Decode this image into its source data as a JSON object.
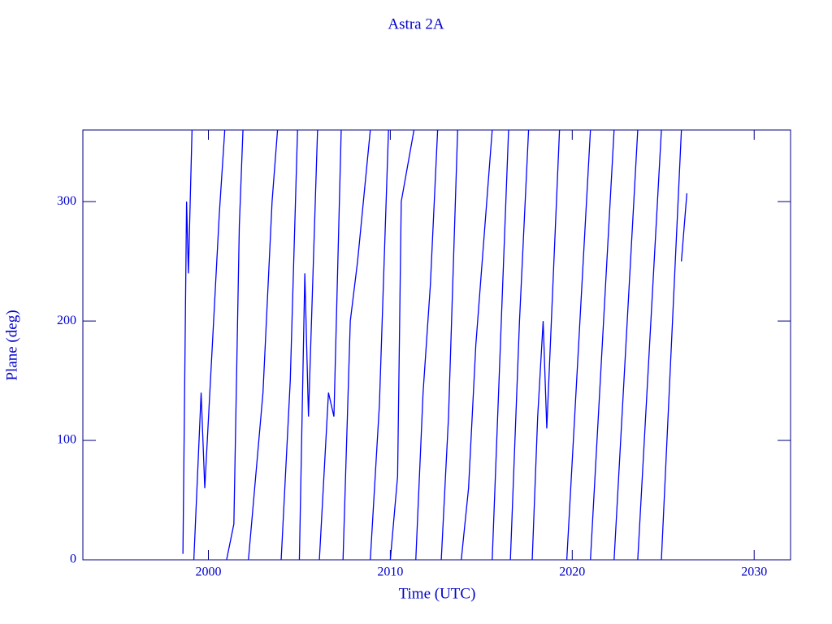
{
  "chart_data": {
    "type": "line",
    "title": "Astra 2A",
    "x_label": "Time (UTC)",
    "y_label": "Plane (deg)",
    "x": [
      1998.6,
      1998.8,
      1998.9,
      1999.1,
      null,
      1999.2,
      1999.6,
      1999.8,
      2000.6,
      2000.9,
      null,
      2001.0,
      2001.4,
      2001.7,
      2001.9,
      null,
      2002.2,
      2003.0,
      2003.5,
      2003.8,
      null,
      2004.0,
      2004.5,
      2004.9,
      null,
      2005.0,
      2005.3,
      2005.5,
      2006.0,
      null,
      2006.1,
      2006.6,
      2006.9,
      2007.3,
      null,
      2007.4,
      2007.8,
      2008.2,
      2008.9,
      null,
      2008.9,
      2009.4,
      2009.9,
      null,
      2010.0,
      2010.4,
      2010.6,
      2011.3,
      null,
      2011.4,
      2011.8,
      2012.2,
      2012.6,
      null,
      2012.8,
      2013.2,
      2013.7,
      null,
      2013.9,
      2014.3,
      2014.7,
      2015.6,
      null,
      2015.6,
      2016.1,
      2016.5,
      null,
      2016.6,
      2017.1,
      2017.6,
      null,
      2017.8,
      2018.1,
      2018.4,
      2018.6,
      2019.3,
      null,
      2019.7,
      2021.0,
      null,
      2021.0,
      2022.3,
      null,
      2022.3,
      2023.6,
      null,
      2023.6,
      2024.9,
      null,
      2024.9,
      2026.0,
      null,
      2026.0,
      2026.3
    ],
    "series": [
      {
        "name": "Plane",
        "color": "#0000ff",
        "values": [
          5,
          300,
          240,
          360,
          null,
          0,
          140,
          60,
          290,
          360,
          null,
          0,
          30,
          280,
          360,
          null,
          0,
          140,
          300,
          360,
          null,
          0,
          150,
          360,
          null,
          0,
          240,
          120,
          360,
          null,
          0,
          140,
          120,
          360,
          null,
          0,
          200,
          250,
          360,
          null,
          0,
          130,
          360,
          null,
          0,
          70,
          300,
          360,
          null,
          0,
          140,
          230,
          360,
          null,
          0,
          120,
          360,
          null,
          0,
          60,
          180,
          360,
          null,
          0,
          200,
          360,
          null,
          0,
          200,
          360,
          null,
          0,
          120,
          200,
          110,
          360,
          null,
          0,
          360,
          null,
          0,
          360,
          null,
          0,
          360,
          null,
          0,
          360,
          null,
          0,
          360,
          null,
          250,
          307
        ]
      }
    ],
    "xlim": [
      1993.1,
      2032
    ],
    "xticks": [
      2000,
      2010,
      2020,
      2030
    ],
    "ylim": [
      0,
      360
    ],
    "yticks": [
      0,
      100,
      200,
      300
    ],
    "axis_color": "#000080"
  }
}
